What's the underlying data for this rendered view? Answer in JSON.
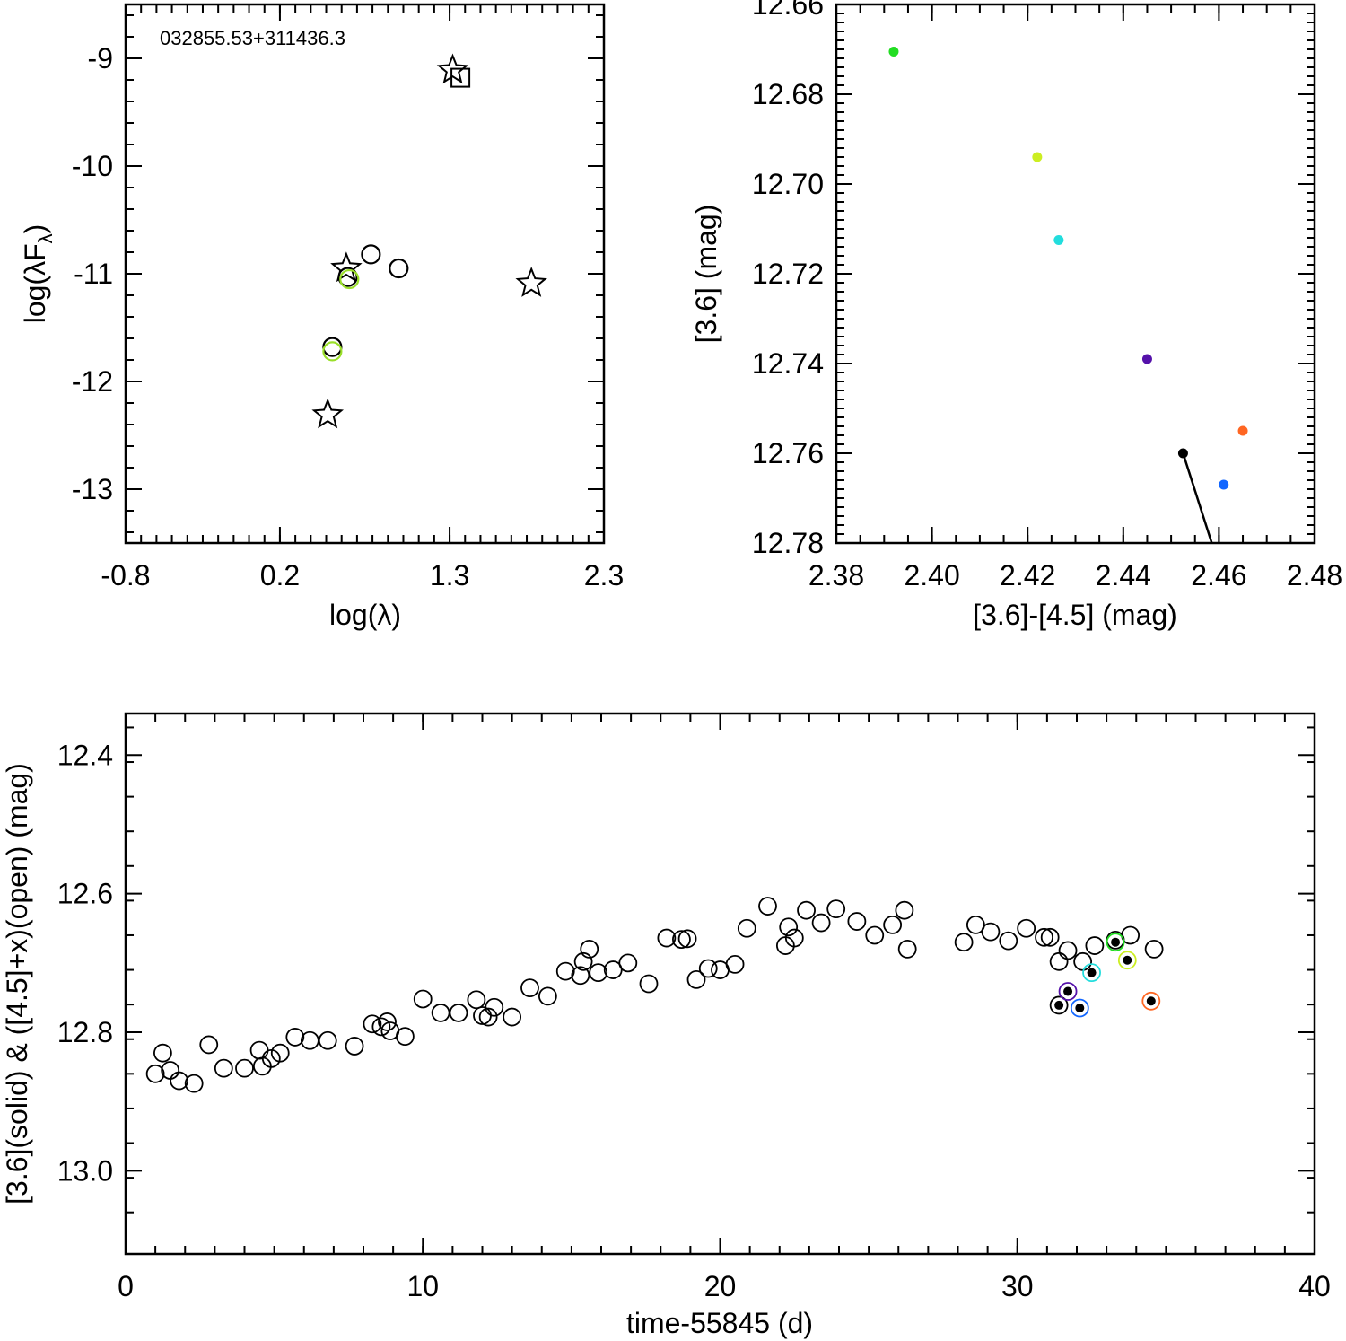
{
  "chart_data": [
    {
      "id": "sed",
      "type": "scatter",
      "title": "",
      "annotation": "032855.53+311436.3",
      "xlabel": "log(λ)",
      "ylabel_main": "log(λF",
      "ylabel_sub": "λ",
      "ylabel_close": ")",
      "xlim": [
        -0.8,
        2.3
      ],
      "ylim": [
        -13.5,
        -8.5
      ],
      "xticks": [
        -0.8,
        0.2,
        1.3,
        2.3
      ],
      "xtick_labels": [
        "-0.8",
        "0.2",
        "1.3",
        "2.3"
      ],
      "yticks": [
        -13,
        -12,
        -11,
        -10,
        -9
      ],
      "ytick_labels": [
        "-13",
        "-12",
        "-11",
        "-10",
        "-9"
      ],
      "series": [
        {
          "name": "stars",
          "marker": "star",
          "color": "#000000",
          "points": [
            [
              0.51,
              -12.31
            ],
            [
              0.63,
              -10.95
            ],
            [
              1.83,
              -11.09
            ],
            [
              1.32,
              -9.11
            ]
          ]
        },
        {
          "name": "open circles",
          "marker": "circle",
          "color": "#000000",
          "points": [
            [
              0.54,
              -11.68
            ],
            [
              0.64,
              -11.03
            ],
            [
              0.79,
              -10.82
            ],
            [
              0.97,
              -10.95
            ]
          ]
        },
        {
          "name": "square",
          "marker": "square",
          "color": "#000000",
          "points": [
            [
              1.37,
              -9.18
            ]
          ]
        },
        {
          "name": "green circles",
          "marker": "circle",
          "color": "#9adf2a",
          "points": [
            [
              0.54,
              -11.72
            ],
            [
              0.65,
              -11.05
            ]
          ]
        }
      ]
    },
    {
      "id": "cmd",
      "type": "scatter",
      "title": "",
      "xlabel": "[3.6]-[4.5] (mag)",
      "ylabel": "[3.6] (mag)",
      "xlim": [
        2.38,
        2.48
      ],
      "ylim": [
        12.78,
        12.66
      ],
      "xticks": [
        2.38,
        2.4,
        2.42,
        2.44,
        2.46,
        2.48
      ],
      "xtick_labels": [
        "2.38",
        "2.40",
        "2.42",
        "2.44",
        "2.46",
        "2.48"
      ],
      "yticks": [
        12.66,
        12.68,
        12.7,
        12.72,
        12.74,
        12.76,
        12.78
      ],
      "ytick_labels": [
        "12.66",
        "12.68",
        "12.70",
        "12.72",
        "12.74",
        "12.76",
        "12.78"
      ],
      "points": [
        {
          "x": 2.392,
          "y": 12.6705,
          "color": "#22dd22"
        },
        {
          "x": 2.422,
          "y": 12.694,
          "color": "#ccee22"
        },
        {
          "x": 2.4265,
          "y": 12.7125,
          "color": "#22dddd"
        },
        {
          "x": 2.445,
          "y": 12.739,
          "color": "#5511aa"
        },
        {
          "x": 2.465,
          "y": 12.755,
          "color": "#ff6622"
        },
        {
          "x": 2.4525,
          "y": 12.76,
          "color": "#000000"
        },
        {
          "x": 2.461,
          "y": 12.767,
          "color": "#1166ff"
        }
      ],
      "line": {
        "from": [
          2.4525,
          12.76
        ],
        "to": [
          2.4585,
          12.782
        ],
        "color": "#000000"
      }
    },
    {
      "id": "lightcurve",
      "type": "scatter",
      "title": "",
      "xlabel": "time-55845 (d)",
      "ylabel": "[3.6](solid) & ([4.5]+x)(open) (mag)",
      "xlim": [
        0,
        40
      ],
      "ylim": [
        13.12,
        12.34
      ],
      "xticks": [
        0,
        10,
        20,
        30,
        40
      ],
      "xtick_labels": [
        "0",
        "10",
        "20",
        "30",
        "40"
      ],
      "yticks": [
        12.4,
        12.6,
        12.8,
        13.0
      ],
      "ytick_labels": [
        "12.4",
        "12.6",
        "12.8",
        "13.0"
      ],
      "open_points": [
        [
          1.0,
          12.86
        ],
        [
          1.25,
          12.83
        ],
        [
          1.5,
          12.855
        ],
        [
          1.8,
          12.87
        ],
        [
          2.3,
          12.874
        ],
        [
          2.8,
          12.818
        ],
        [
          3.3,
          12.852
        ],
        [
          4.0,
          12.852
        ],
        [
          4.5,
          12.826
        ],
        [
          4.6,
          12.849
        ],
        [
          4.9,
          12.838
        ],
        [
          5.2,
          12.83
        ],
        [
          5.7,
          12.807
        ],
        [
          6.2,
          12.812
        ],
        [
          6.8,
          12.812
        ],
        [
          7.7,
          12.82
        ],
        [
          8.3,
          12.788
        ],
        [
          8.6,
          12.792
        ],
        [
          8.8,
          12.785
        ],
        [
          8.9,
          12.798
        ],
        [
          9.4,
          12.806
        ],
        [
          10.0,
          12.752
        ],
        [
          10.6,
          12.772
        ],
        [
          11.2,
          12.772
        ],
        [
          11.8,
          12.753
        ],
        [
          12.0,
          12.776
        ],
        [
          12.2,
          12.778
        ],
        [
          12.4,
          12.764
        ],
        [
          13.0,
          12.778
        ],
        [
          13.6,
          12.736
        ],
        [
          14.2,
          12.748
        ],
        [
          14.8,
          12.712
        ],
        [
          15.3,
          12.718
        ],
        [
          15.4,
          12.698
        ],
        [
          15.6,
          12.68
        ],
        [
          15.9,
          12.714
        ],
        [
          16.4,
          12.71
        ],
        [
          16.9,
          12.7
        ],
        [
          17.6,
          12.73
        ],
        [
          18.2,
          12.664
        ],
        [
          18.7,
          12.666
        ],
        [
          18.9,
          12.665
        ],
        [
          19.2,
          12.724
        ],
        [
          19.6,
          12.708
        ],
        [
          20.0,
          12.71
        ],
        [
          20.5,
          12.702
        ],
        [
          20.9,
          12.65
        ],
        [
          21.6,
          12.618
        ],
        [
          22.2,
          12.675
        ],
        [
          22.3,
          12.648
        ],
        [
          22.5,
          12.664
        ],
        [
          22.9,
          12.624
        ],
        [
          23.4,
          12.642
        ],
        [
          23.9,
          12.622
        ],
        [
          24.6,
          12.64
        ],
        [
          25.2,
          12.66
        ],
        [
          25.8,
          12.645
        ],
        [
          26.2,
          12.624
        ],
        [
          26.3,
          12.68
        ],
        [
          28.2,
          12.67
        ],
        [
          28.6,
          12.645
        ],
        [
          29.1,
          12.655
        ],
        [
          29.7,
          12.668
        ],
        [
          30.3,
          12.65
        ],
        [
          30.9,
          12.663
        ],
        [
          31.1,
          12.663
        ],
        [
          31.4,
          12.698
        ],
        [
          31.7,
          12.682
        ],
        [
          32.2,
          12.698
        ],
        [
          32.6,
          12.675
        ],
        [
          33.3,
          12.667
        ],
        [
          33.8,
          12.66
        ],
        [
          34.6,
          12.68
        ]
      ],
      "solid_points": [
        {
          "x": 31.4,
          "y": 12.761,
          "color": "#000000"
        },
        {
          "x": 31.7,
          "y": 12.741,
          "color": "#5511aa"
        },
        {
          "x": 32.1,
          "y": 12.765,
          "color": "#1166ff"
        },
        {
          "x": 32.5,
          "y": 12.714,
          "color": "#22dddd"
        },
        {
          "x": 33.3,
          "y": 12.67,
          "color": "#22dd22"
        },
        {
          "x": 33.7,
          "y": 12.696,
          "color": "#ccee22"
        },
        {
          "x": 34.5,
          "y": 12.755,
          "color": "#ff6622"
        }
      ]
    }
  ]
}
